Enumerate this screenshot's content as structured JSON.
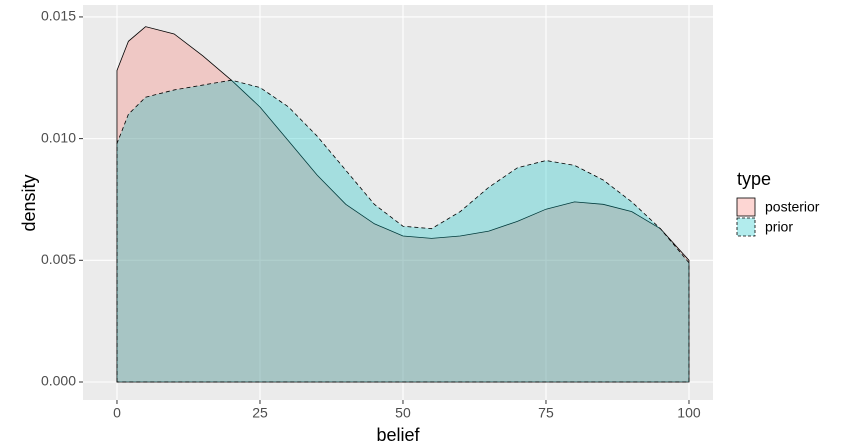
{
  "chart_data": {
    "type": "density",
    "x_label": "belief",
    "y_label": "density",
    "legend_title": "type",
    "x": [
      0,
      2,
      5,
      10,
      15,
      20,
      25,
      30,
      35,
      40,
      45,
      50,
      55,
      60,
      65,
      70,
      75,
      80,
      85,
      90,
      95,
      100
    ],
    "series": [
      {
        "name": "posterior",
        "color": "#F8766D",
        "linestyle": "solid",
        "values": [
          0.0128,
          0.014,
          0.0146,
          0.0143,
          0.0134,
          0.0124,
          0.0113,
          0.0099,
          0.0085,
          0.0073,
          0.0065,
          0.006,
          0.0059,
          0.006,
          0.0062,
          0.0066,
          0.0071,
          0.0074,
          0.0073,
          0.007,
          0.0063,
          0.005
        ]
      },
      {
        "name": "prior",
        "color": "#00BFC4",
        "linestyle": "dashed",
        "values": [
          0.0098,
          0.011,
          0.0117,
          0.012,
          0.0122,
          0.0124,
          0.0121,
          0.0113,
          0.0101,
          0.0087,
          0.0073,
          0.0064,
          0.0063,
          0.007,
          0.008,
          0.0088,
          0.0091,
          0.0089,
          0.0083,
          0.0074,
          0.0063,
          0.0049
        ]
      }
    ],
    "xlim": [
      -5.94,
      104.2
    ],
    "ylim": [
      -0.00074,
      0.01549
    ],
    "xticks": [
      0,
      25,
      50,
      75,
      100
    ],
    "yticks": [
      {
        "value": 0,
        "label": "0.000"
      },
      0.005,
      {
        "value": 0.01,
        "label": "0.010"
      },
      0.015
    ],
    "grid": true,
    "fill_opacity": 0.3,
    "legend_position": "right"
  }
}
